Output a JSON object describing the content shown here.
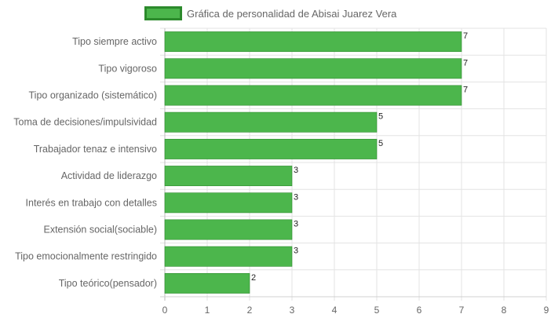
{
  "chart_data": {
    "type": "bar",
    "orientation": "horizontal",
    "categories": [
      "Tipo siempre activo",
      "Tipo vigoroso",
      "Tipo organizado (sistemático)",
      "Toma de decisiones/impulsividad",
      "Trabajador tenaz e intensivo",
      "Actividad de liderazgo",
      "Interés en trabajo con detalles",
      "Extensión social(sociable)",
      "Tipo emocionalmente restringido",
      "Tipo teórico(pensador)"
    ],
    "series": [
      {
        "name": "Gráfica de personalidad de Abisai Juarez Vera",
        "values": [
          7,
          7,
          7,
          5,
          5,
          3,
          3,
          3,
          3,
          2
        ]
      }
    ],
    "xlim": [
      0,
      9
    ],
    "xticks": [
      "0",
      "1",
      "2",
      "3",
      "4",
      "5",
      "6",
      "7",
      "8",
      "9"
    ],
    "grid": true,
    "legend_position": "top",
    "data_labels": true,
    "colors": {
      "bar_fill": "#4cb64c",
      "bar_border": "#2c8a2c",
      "grid": "#e3e3e3",
      "axis_text": "#666666"
    }
  }
}
